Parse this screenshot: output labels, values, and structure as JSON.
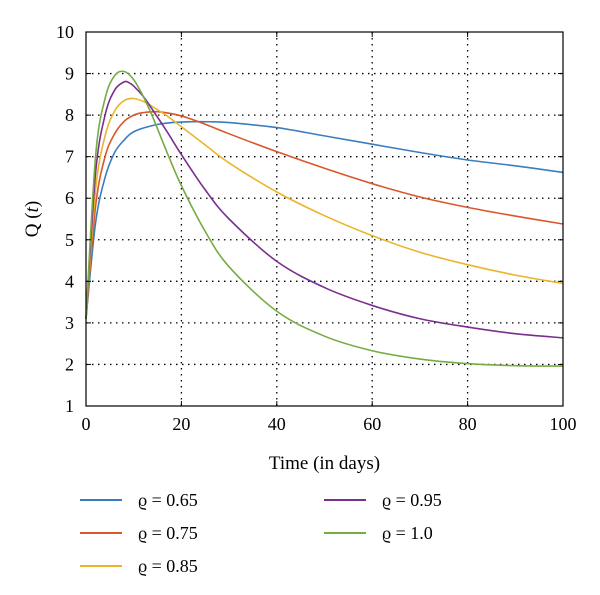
{
  "chart_data": {
    "type": "line",
    "xlabel": "Time (in days)",
    "ylabel_main": "Q",
    "ylabel_var": "t",
    "xlim": [
      0,
      100
    ],
    "ylim": [
      1,
      10
    ],
    "xticks": [
      0,
      20,
      40,
      60,
      80,
      100
    ],
    "yticks": [
      1,
      2,
      3,
      4,
      5,
      6,
      7,
      8,
      9,
      10
    ],
    "grid": true,
    "grid_style": "dotted",
    "legend_position": "bottom",
    "series": [
      {
        "name": "ϱ = 0.65",
        "color": "#3a7dbf",
        "x": [
          0,
          2,
          4,
          6,
          8,
          10,
          14,
          18,
          22,
          26,
          30,
          40,
          50,
          60,
          70,
          80,
          90,
          100
        ],
        "y": [
          3.1,
          5.4,
          6.5,
          7.1,
          7.4,
          7.6,
          7.75,
          7.82,
          7.84,
          7.84,
          7.82,
          7.7,
          7.5,
          7.3,
          7.1,
          6.92,
          6.78,
          6.62
        ]
      },
      {
        "name": "ϱ = 0.75",
        "color": "#d9582b",
        "x": [
          0,
          2,
          4,
          6,
          8,
          10,
          12,
          14,
          16,
          20,
          25,
          30,
          40,
          50,
          60,
          70,
          80,
          90,
          100
        ],
        "y": [
          3.1,
          5.8,
          7.0,
          7.55,
          7.85,
          8.0,
          8.06,
          8.08,
          8.07,
          7.98,
          7.78,
          7.55,
          7.12,
          6.72,
          6.35,
          6.03,
          5.78,
          5.57,
          5.38
        ]
      },
      {
        "name": "ϱ = 0.85",
        "color": "#ebb52b",
        "x": [
          0,
          2,
          4,
          6,
          8,
          10,
          12,
          14,
          17,
          20,
          25,
          30,
          40,
          50,
          60,
          70,
          80,
          90,
          100
        ],
        "y": [
          3.1,
          6.2,
          7.5,
          8.1,
          8.35,
          8.4,
          8.33,
          8.2,
          7.98,
          7.72,
          7.28,
          6.85,
          6.15,
          5.58,
          5.1,
          4.7,
          4.4,
          4.15,
          3.95
        ]
      },
      {
        "name": "ϱ = 0.95",
        "color": "#7a2f8e",
        "x": [
          0,
          2,
          4,
          6,
          8,
          9,
          10,
          12,
          14,
          17,
          20,
          25,
          30,
          40,
          50,
          60,
          70,
          80,
          90,
          100
        ],
        "y": [
          3.1,
          6.6,
          8.0,
          8.6,
          8.8,
          8.78,
          8.7,
          8.45,
          8.12,
          7.6,
          7.05,
          6.2,
          5.5,
          4.48,
          3.85,
          3.42,
          3.1,
          2.9,
          2.74,
          2.64
        ]
      },
      {
        "name": "ϱ = 1.0",
        "color": "#77ab43",
        "x": [
          0,
          2,
          4,
          6,
          8,
          10,
          12,
          14,
          17,
          20,
          25,
          30,
          40,
          50,
          60,
          70,
          80,
          90,
          100
        ],
        "y": [
          3.1,
          7.0,
          8.4,
          8.95,
          9.05,
          8.85,
          8.45,
          7.95,
          7.1,
          6.3,
          5.2,
          4.35,
          3.28,
          2.68,
          2.33,
          2.13,
          2.02,
          1.97,
          1.96
        ]
      }
    ]
  }
}
